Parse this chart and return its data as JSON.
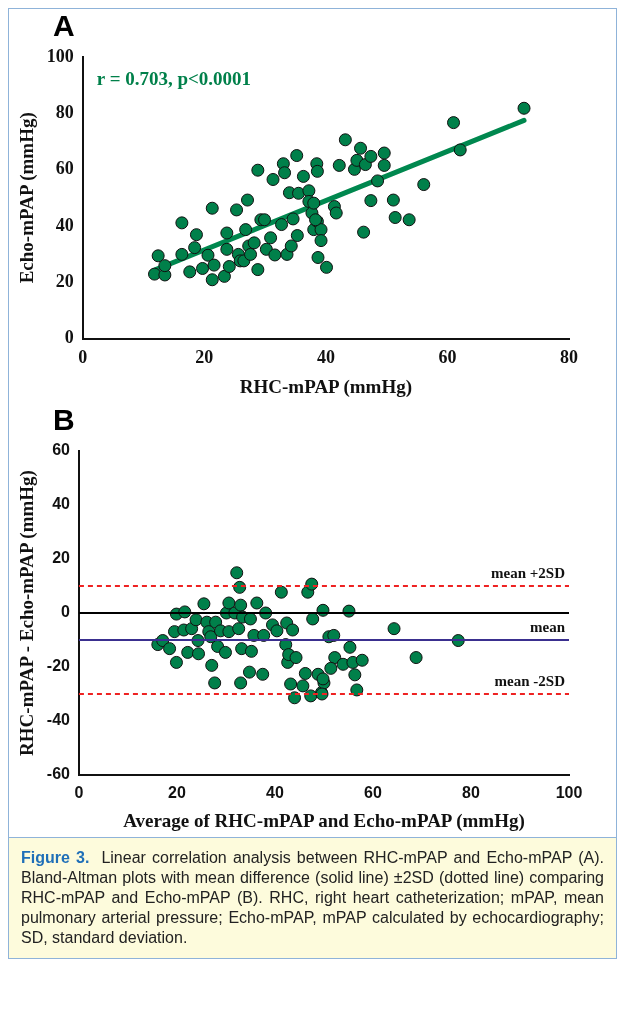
{
  "chart_data": [
    {
      "type": "scatter",
      "title": "A",
      "xlabel": "RHC-mPAP (mmHg)",
      "ylabel": "Echo-mPAP (mmHg)",
      "xlim": [
        0,
        80
      ],
      "xticks": [
        0,
        20,
        40,
        60,
        80
      ],
      "ylim": [
        0,
        100
      ],
      "yticks": [
        0,
        20,
        40,
        60,
        80,
        100
      ],
      "grid": false,
      "legend": false,
      "marker": "circle",
      "annotations": [
        "r = 0.703, p<0.0001"
      ],
      "series": [
        {
          "color": "#00804a",
          "x": [
            11.8,
            12.4,
            13.5,
            13.5,
            16.3,
            16.3,
            17.6,
            18.4,
            18.7,
            19.7,
            20.6,
            21.3,
            21.3,
            21.6,
            23.3,
            23.7,
            23.7,
            24.1,
            25.3,
            25.6,
            25.9,
            26.5,
            26.8,
            27.1,
            27.3,
            27.6,
            28.2,
            28.8,
            28.8,
            29.3,
            29.9,
            30.2,
            30.9,
            31.3,
            31.6,
            32.7,
            33.0,
            33.2,
            33.6,
            34.0,
            34.3,
            34.6,
            35.2,
            35.3,
            35.5,
            36.3,
            37.2,
            37.2,
            37.7,
            38.0,
            38.5,
            38.6,
            38.7,
            38.6,
            39.2,
            39.2,
            40.1,
            38.0,
            38.3,
            41.4,
            41.7,
            42.2,
            43.2,
            44.7,
            45.1,
            45.7,
            46.2,
            46.5,
            47.4,
            47.4,
            48.5,
            49.6,
            49.6,
            51.1,
            51.4,
            53.7,
            56.1,
            61.0,
            62.1,
            72.6
          ],
          "values": [
            22.9,
            29.4,
            22.6,
            25.9,
            41.1,
            29.9,
            23.7,
            32.3,
            36.9,
            24.9,
            29.6,
            46.3,
            20.9,
            26.1,
            22.1,
            37.5,
            31.7,
            25.6,
            45.7,
            29.9,
            27.6,
            27.6,
            38.7,
            49.2,
            32.9,
            29.9,
            34.0,
            59.8,
            24.5,
            42.2,
            42.2,
            31.7,
            35.8,
            56.5,
            29.7,
            40.5,
            62.1,
            58.9,
            29.9,
            51.8,
            32.9,
            42.5,
            65.0,
            36.6,
            51.6,
            57.6,
            52.5,
            48.7,
            44.6,
            38.7,
            62.1,
            59.4,
            28.8,
            41.6,
            38.7,
            34.8,
            25.3,
            48.1,
            42.2,
            46.9,
            44.6,
            61.5,
            70.6,
            60.1,
            63.3,
            67.6,
            37.8,
            61.8,
            64.7,
            49.0,
            56.0,
            65.9,
            61.5,
            49.2,
            43.0,
            42.2,
            54.7,
            76.7,
            67.0,
            81.8
          ]
        },
        {
          "type": "line",
          "marker": "none",
          "color": "#00884f",
          "x": [
            12,
            72.6
          ],
          "values": [
            24.5,
            77.5
          ]
        }
      ]
    },
    {
      "type": "scatter",
      "title": "B",
      "xlabel": "Average of RHC-mPAP and Echo-mPAP (mmHg)",
      "ylabel": "RHC-mPAP - Echo-mPAP (mmHg)",
      "xlim": [
        0,
        100
      ],
      "xticks": [
        0,
        20,
        40,
        60,
        80,
        100
      ],
      "ylim": [
        -60,
        60
      ],
      "yticks": [
        -60,
        -40,
        -20,
        0,
        20,
        40,
        60
      ],
      "grid": false,
      "legend": false,
      "marker": "circle",
      "ref_lines": [
        {
          "axis": "y",
          "value": 0,
          "label": null,
          "color": "#000000",
          "line_style": "solid"
        },
        {
          "axis": "y",
          "value": 10,
          "label": "mean +2SD",
          "color": "#ee2222",
          "line_style": "dashed"
        },
        {
          "axis": "y",
          "value": -10,
          "label": "mean",
          "color": "#3a2f8f",
          "line_style": "solid"
        },
        {
          "axis": "y",
          "value": -30,
          "label": "mean -2SD",
          "color": "#ee2222",
          "line_style": "dashed"
        }
      ],
      "series": [
        {
          "color": "#00804a",
          "x": [
            16.1,
            17.1,
            18.5,
            19.5,
            19.9,
            19.9,
            21.6,
            21.4,
            22.2,
            23.0,
            23.9,
            24.3,
            24.4,
            25.5,
            26.1,
            26.5,
            26.9,
            27.1,
            27.7,
            27.9,
            28.3,
            28.9,
            29.9,
            30.1,
            30.6,
            30.6,
            31.8,
            32.2,
            32.6,
            32.8,
            33.0,
            33.0,
            33.2,
            33.4,
            34.8,
            35.0,
            35.2,
            35.7,
            36.3,
            37.5,
            37.7,
            38.1,
            39.5,
            40.4,
            41.3,
            42.2,
            42.4,
            42.6,
            42.8,
            43.2,
            43.6,
            44.0,
            44.3,
            45.7,
            46.2,
            46.7,
            47.3,
            47.5,
            47.7,
            48.8,
            49.5,
            49.8,
            50.0,
            51.0,
            55.1,
            52.0,
            55.3,
            52.2,
            53.9,
            55.9,
            57.8,
            51.4,
            56.3,
            49.8,
            56.7,
            49.6,
            64.3,
            68.8,
            77.4
          ],
          "values": [
            -11.7,
            -10.2,
            -13.2,
            -6.9,
            -18.3,
            -0.4,
            0.4,
            -6.3,
            -14.6,
            -5.8,
            -2.5,
            -10.2,
            -15.1,
            3.4,
            -3.4,
            -6.9,
            -8.8,
            -19.4,
            -25.9,
            -3.4,
            -12.4,
            -6.6,
            -14.6,
            0,
            3.7,
            -6.9,
            0,
            14.9,
            -5.8,
            9.5,
            2.9,
            -25.9,
            -13.2,
            -1.5,
            -21.9,
            -2.2,
            -14.2,
            -8.3,
            3.7,
            -22.7,
            -8.3,
            0,
            -4.4,
            -6.6,
            7.7,
            -11.7,
            -3.7,
            -18.3,
            -15.4,
            -26.3,
            -6.3,
            -31.4,
            -16.5,
            -27.0,
            -22.4,
            7.7,
            -30.7,
            10.7,
            -2.2,
            -22.7,
            -29.5,
            1.0,
            -25.9,
            -8.8,
            0.7,
            -8.3,
            -12.7,
            -16.5,
            -19.0,
            -18.3,
            -17.5,
            -20.5,
            -22.9,
            -24.4,
            -28.5,
            -30.0,
            -5.8,
            -16.5,
            -10.2
          ]
        }
      ]
    },
    {
      "type": "other",
      "title": "Figure 3.",
      "annotations": [
        "Linear correlation analysis between RHC-mPAP and Echo-mPAP (A). Bland-Altman plots with mean difference (solid line) ±2SD (dotted line) comparing RHC-mPAP and Echo-mPAP (B). RHC, right heart catheterization; mPAP, mean pulmonary arterial pressure; Echo-mPAP, mPAP calculated by echocardiography; SD, standard deviation."
      ]
    }
  ]
}
